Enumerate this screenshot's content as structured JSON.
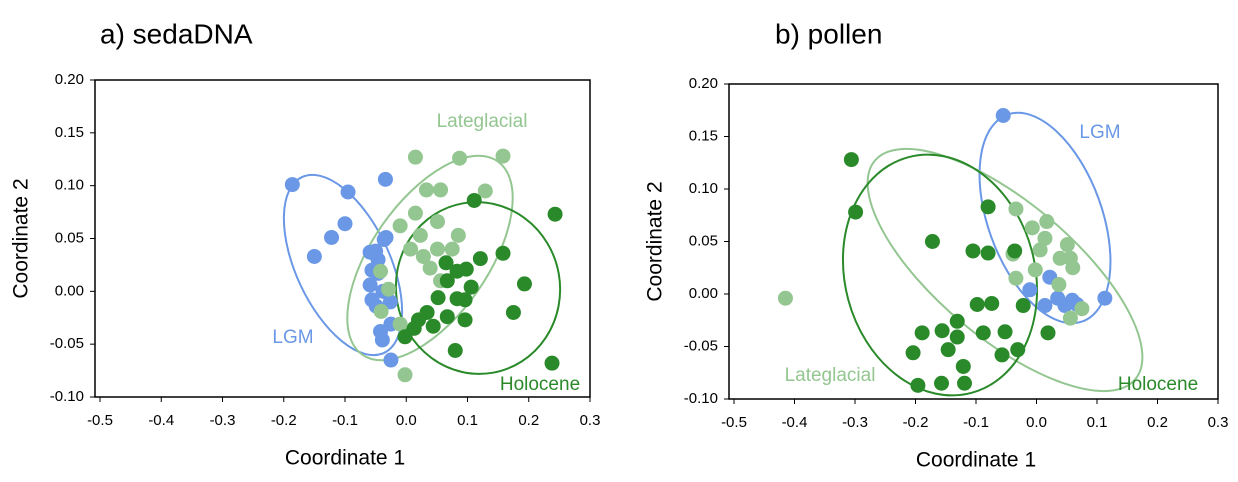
{
  "chart_data": [
    {
      "type": "scatter",
      "title": "a) sedaDNA",
      "xlabel": "Coordinate 1",
      "ylabel": "Coordinate 2",
      "xlim": [
        -0.5,
        0.3
      ],
      "xticks": [
        -0.5,
        -0.4,
        -0.3,
        -0.2,
        -0.1,
        {
          "value": 0,
          "label": "0.0"
        },
        0.1,
        0.2,
        0.3
      ],
      "ylim": [
        -0.1,
        0.2
      ],
      "yticks": [
        {
          "value": -0.1,
          "label": "-0.10"
        },
        -0.05,
        {
          "value": 0,
          "label": "0.00"
        },
        0.05,
        {
          "value": 0.1,
          "label": "0.10"
        },
        0.15,
        {
          "value": 0.2,
          "label": "0.20"
        }
      ],
      "series": [
        {
          "name": "LGM",
          "color": "#6a98e6",
          "x": [
            -0.186,
            -0.095,
            -0.15,
            -0.122,
            -0.1,
            -0.034,
            -0.05,
            -0.036,
            -0.033,
            -0.046,
            -0.059,
            -0.056,
            -0.046,
            -0.059,
            -0.056,
            -0.049,
            -0.038,
            -0.026,
            -0.042,
            -0.039,
            -0.025,
            -0.025
          ],
          "values": [
            0.101,
            0.094,
            0.033,
            0.051,
            0.064,
            0.106,
            0.038,
            0.049,
            0.051,
            0.03,
            0.037,
            0.02,
            0.017,
            0.006,
            -0.008,
            -0.014,
            0.0,
            -0.01,
            -0.038,
            -0.046,
            -0.031,
            -0.065
          ]
        },
        {
          "name": "Lateglacial",
          "color": "#93c690",
          "x": [
            0.015,
            0.087,
            0.158,
            0.129,
            0.033,
            0.056,
            0.015,
            0.051,
            -0.01,
            0.023,
            0.085,
            0.007,
            0.051,
            0.075,
            0.039,
            -0.042,
            -0.029,
            0.056,
            -0.041,
            -0.01,
            -0.002,
            0.028
          ],
          "values": [
            0.127,
            0.126,
            0.128,
            0.095,
            0.096,
            0.096,
            0.074,
            0.066,
            0.062,
            0.053,
            0.053,
            0.04,
            0.04,
            0.04,
            0.022,
            0.019,
            0.002,
            0.01,
            -0.019,
            -0.031,
            -0.079,
            0.033
          ]
        },
        {
          "name": "Holocene",
          "color": "#2a8a2a",
          "x": [
            0.111,
            0.243,
            0.158,
            0.098,
            0.083,
            0.121,
            0.065,
            0.067,
            0.106,
            0.083,
            0.096,
            0.193,
            0.052,
            0.034,
            0.067,
            0.044,
            0.013,
            -0.002,
            0.096,
            0.08,
            0.175,
            0.238,
            0.02
          ],
          "values": [
            0.086,
            0.073,
            0.036,
            0.021,
            0.019,
            0.031,
            0.027,
            0.01,
            0.004,
            -0.007,
            -0.008,
            0.007,
            -0.006,
            -0.02,
            -0.024,
            -0.033,
            -0.035,
            -0.043,
            -0.027,
            -0.056,
            -0.02,
            -0.068,
            -0.027
          ]
        }
      ]
    },
    {
      "type": "scatter",
      "title": "b) pollen",
      "xlabel": "Coordinate 1",
      "ylabel": "Coordinate 2",
      "xlim": [
        -0.5,
        0.3
      ],
      "xticks": [
        -0.5,
        -0.4,
        -0.3,
        -0.2,
        -0.1,
        {
          "value": 0,
          "label": "0.0"
        },
        0.1,
        0.2,
        0.3
      ],
      "ylim": [
        -0.1,
        0.2
      ],
      "yticks": [
        {
          "value": -0.1,
          "label": "-0.10"
        },
        -0.05,
        {
          "value": 0,
          "label": "0.00"
        },
        0.05,
        {
          "value": 0.1,
          "label": "0.10"
        },
        0.15,
        {
          "value": 0.2,
          "label": "0.20"
        }
      ],
      "series": [
        {
          "name": "LGM",
          "color": "#6a98e6",
          "x": [
            -0.055,
            0.113,
            0.022,
            -0.011,
            0.014,
            0.035,
            0.047,
            0.067,
            0.059
          ],
          "values": [
            0.17,
            -0.004,
            0.016,
            0.004,
            -0.011,
            -0.004,
            -0.011,
            -0.01,
            -0.006
          ]
        },
        {
          "name": "Lateglacial",
          "color": "#93c690",
          "x": [
            -0.415,
            -0.034,
            -0.007,
            0.017,
            0.014,
            0.006,
            0.051,
            0.056,
            0.06,
            0.039,
            -0.039,
            -0.002,
            -0.034,
            0.075,
            0.056,
            0.037
          ],
          "values": [
            -0.004,
            0.081,
            0.063,
            0.069,
            0.053,
            0.042,
            0.047,
            0.034,
            0.025,
            0.034,
            0.038,
            0.023,
            0.015,
            -0.014,
            -0.023,
            0.009
          ]
        },
        {
          "name": "Holocene",
          "color": "#2a8a2a",
          "x": [
            -0.306,
            -0.299,
            -0.172,
            -0.08,
            -0.105,
            -0.08,
            -0.036,
            -0.074,
            -0.022,
            -0.098,
            -0.052,
            -0.057,
            0.019,
            -0.031,
            -0.131,
            -0.131,
            -0.156,
            -0.189,
            -0.204,
            -0.088,
            -0.121,
            -0.146,
            -0.196,
            -0.157,
            -0.119
          ],
          "values": [
            0.128,
            0.078,
            0.05,
            0.083,
            0.041,
            0.039,
            0.041,
            -0.009,
            -0.011,
            -0.01,
            -0.036,
            -0.058,
            -0.037,
            -0.053,
            -0.026,
            -0.041,
            -0.035,
            -0.037,
            -0.056,
            -0.037,
            -0.069,
            -0.053,
            -0.087,
            -0.085,
            -0.085
          ]
        }
      ]
    }
  ]
}
